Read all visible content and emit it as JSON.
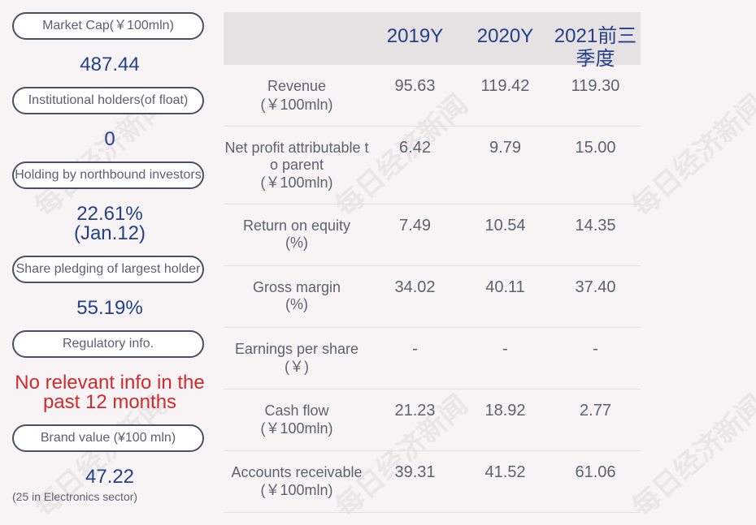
{
  "sidebar": {
    "market_cap": {
      "label": "Market Cap(￥100mln)",
      "value": "487.44"
    },
    "institutional": {
      "label": "Institutional holders(of float)",
      "value": "0"
    },
    "northbound": {
      "label": "Holding by northbound investors",
      "value": "22.61%",
      "value2": "(Jan.12)"
    },
    "pledging": {
      "label": "Share pledging of largest holder",
      "value": "55.19%"
    },
    "regulatory": {
      "label": "Regulatory info.",
      "value": "No relevant info in the",
      "value2": "past 12 months"
    },
    "brand": {
      "label": "Brand value (¥100 mln)",
      "value": "47.22",
      "note": "(25 in Electronics sector)"
    }
  },
  "table": {
    "years": [
      "2019Y",
      "2020Y",
      "2021前三",
      "季度"
    ],
    "rows": [
      {
        "line1": "Revenue",
        "line2": "(￥100mln)",
        "v1": "95.63",
        "v2": "119.42",
        "v3": "119.30"
      },
      {
        "line1": "Net profit attributable t",
        "line1b": "o parent",
        "line2": "(￥100mln)",
        "v1": "6.42",
        "v2": "9.79",
        "v3": "15.00"
      },
      {
        "line1": "Return on equity",
        "line2": "(%)",
        "v1": "7.49",
        "v2": "10.54",
        "v3": "14.35"
      },
      {
        "line1": "Gross margin",
        "line2": "(%)",
        "v1": "34.02",
        "v2": "40.11",
        "v3": "37.40"
      },
      {
        "line1": "Earnings per share",
        "line2": "(￥)",
        "v1": "-",
        "v2": "-",
        "v3": "-"
      },
      {
        "line1": "Cash flow",
        "line2": "(￥100mln)",
        "v1": "21.23",
        "v2": "18.92",
        "v3": "2.77"
      },
      {
        "line1": "Accounts receivable",
        "line2": "(￥100mln)",
        "v1": "39.31",
        "v2": "41.52",
        "v3": "61.06"
      }
    ]
  },
  "watermark": "每日经济新闻",
  "colors": {
    "background": "#f8f4f6",
    "value_blue": "#23418a",
    "warning_red": "#d22a2a",
    "text_gray": "#5d6170"
  }
}
